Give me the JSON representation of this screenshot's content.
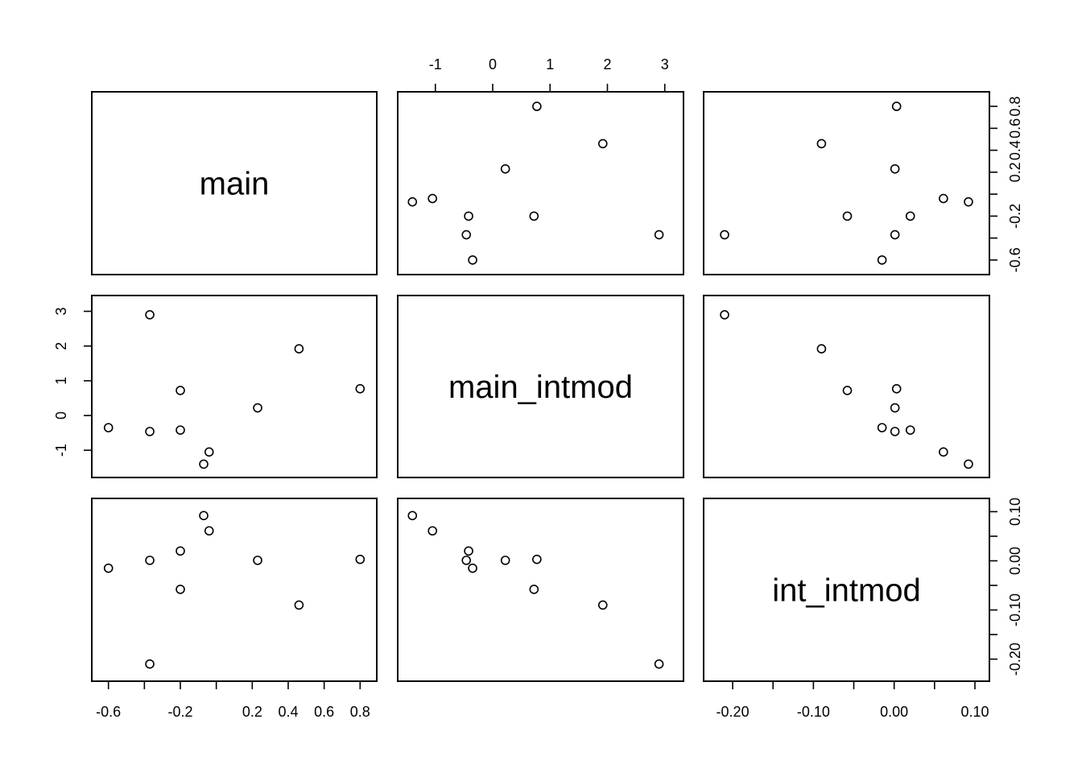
{
  "chart_data": {
    "type": "scatter",
    "variables": [
      "main",
      "main_intmod",
      "int_intmod"
    ],
    "observations": {
      "main": [
        -0.6,
        -0.37,
        -0.37,
        -0.2,
        -0.2,
        -0.07,
        -0.04,
        0.23,
        0.46,
        0.8
      ],
      "main_intmod": [
        -0.35,
        -0.46,
        2.9,
        0.72,
        -0.42,
        -1.4,
        -1.05,
        0.22,
        1.92,
        0.77
      ],
      "int_intmod": [
        -0.015,
        0.001,
        -0.21,
        -0.058,
        0.02,
        0.092,
        0.061,
        0.001,
        -0.09,
        0.003
      ]
    },
    "axis_ranges": {
      "main": [
        -0.63,
        0.83
      ],
      "main_intmod": [
        -1.46,
        3.13
      ],
      "int_intmod": [
        -0.222,
        0.104
      ]
    },
    "ticks": {
      "main": [
        -0.6,
        -0.4,
        -0.2,
        0.0,
        0.2,
        0.4,
        0.6,
        0.8
      ],
      "main_intmod": [
        -1,
        0,
        1,
        2,
        3
      ],
      "int_intmod": [
        -0.2,
        -0.15,
        -0.1,
        -0.05,
        0.0,
        0.05,
        0.1
      ]
    },
    "tick_labels": {
      "main": [
        "-0.6",
        "",
        "-0.2",
        "",
        "0.2",
        "0.4",
        "0.6",
        "0.8"
      ],
      "main_intmod": [
        "-1",
        "0",
        "1",
        "2",
        "3"
      ],
      "int_intmod": [
        "-0.20",
        "",
        "-0.10",
        "",
        "0.00",
        "",
        "0.10"
      ]
    },
    "grid": false,
    "legend": "none"
  }
}
